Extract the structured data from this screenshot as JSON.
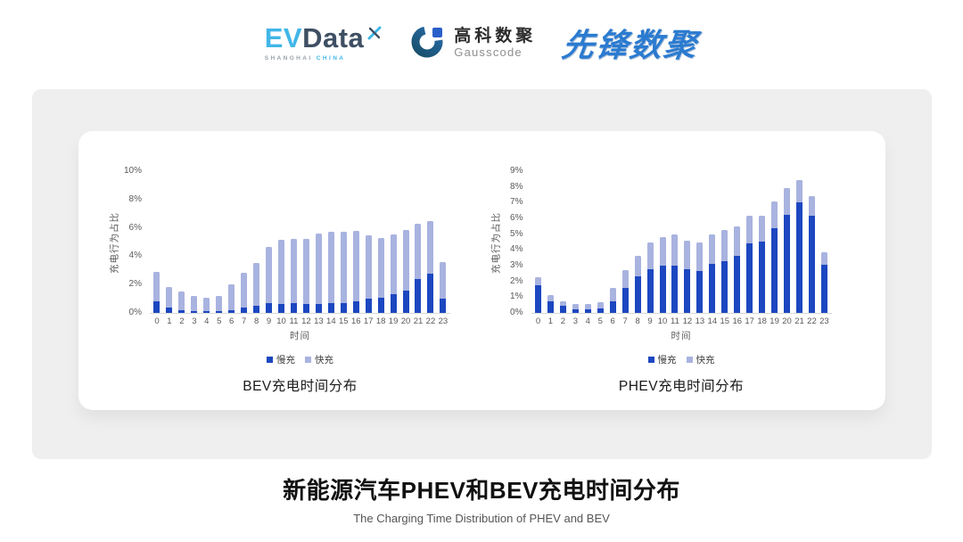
{
  "page": {
    "bg": "#ffffff",
    "panel_bg": "#efefef",
    "card_bg": "#ffffff"
  },
  "header": {
    "evdata": {
      "part1": "EV",
      "part2": "Data",
      "tagline_left": "SHANGHAI",
      "tagline_right": "CHINA",
      "accent_color": "#41b6e8",
      "dark_color": "#3e4f63"
    },
    "gausscode": {
      "name_cn": "高科数聚",
      "name_en": "Gausscode"
    },
    "xianfeng": {
      "text": "先锋数聚",
      "color": "#2b7bd0"
    }
  },
  "colors": {
    "slow": "#1c47c0",
    "fast": "#a9b3e0",
    "axis_text": "#595959",
    "baseline": "#d9d9d9"
  },
  "footer": {
    "title": "新能源汽车PHEV和BEV充电时间分布",
    "subtitle": "The Charging Time Distribution of PHEV and BEV"
  },
  "chart_data": [
    {
      "type": "bar",
      "stacked": true,
      "title": "BEV充电时间分布",
      "xlabel": "时间",
      "ylabel": "充电行为占比",
      "ylim": [
        0,
        10
      ],
      "ytick_step": 2,
      "ytick_suffix": "%",
      "grid": false,
      "legend_position": "bottom",
      "categories": [
        "0",
        "1",
        "2",
        "3",
        "4",
        "5",
        "6",
        "7",
        "8",
        "9",
        "10",
        "11",
        "12",
        "13",
        "14",
        "15",
        "16",
        "17",
        "18",
        "19",
        "20",
        "21",
        "22",
        "23"
      ],
      "series": [
        {
          "name": "慢充",
          "color": "#1c47c0",
          "values": [
            0.8,
            0.4,
            0.2,
            0.1,
            0.1,
            0.1,
            0.2,
            0.4,
            0.5,
            0.7,
            0.65,
            0.7,
            0.6,
            0.6,
            0.7,
            0.7,
            0.8,
            1.0,
            1.1,
            1.3,
            1.6,
            2.4,
            2.75,
            1.0
          ]
        },
        {
          "name": "快充",
          "color": "#a9b3e0",
          "values": [
            2.1,
            1.45,
            1.3,
            1.1,
            1.0,
            1.1,
            1.8,
            2.4,
            3.05,
            3.95,
            4.5,
            4.5,
            4.6,
            5.0,
            5.05,
            5.05,
            5.0,
            4.45,
            4.2,
            4.25,
            4.25,
            3.9,
            3.75,
            2.6
          ]
        }
      ]
    },
    {
      "type": "bar",
      "stacked": true,
      "title": "PHEV充电时间分布",
      "xlabel": "时间",
      "ylabel": "充电行为占比",
      "ylim": [
        0,
        9
      ],
      "ytick_step": 1,
      "ytick_suffix": "%",
      "grid": false,
      "legend_position": "bottom",
      "categories": [
        "0",
        "1",
        "2",
        "3",
        "4",
        "5",
        "6",
        "7",
        "8",
        "9",
        "10",
        "11",
        "12",
        "13",
        "14",
        "15",
        "16",
        "17",
        "18",
        "19",
        "20",
        "21",
        "22",
        "23"
      ],
      "series": [
        {
          "name": "慢充",
          "color": "#1c47c0",
          "values": [
            1.75,
            0.75,
            0.45,
            0.25,
            0.25,
            0.3,
            0.75,
            1.6,
            2.3,
            2.8,
            3.0,
            3.0,
            2.8,
            2.65,
            3.1,
            3.3,
            3.6,
            4.4,
            4.55,
            5.35,
            6.2,
            7.0,
            6.15,
            3.05
          ]
        },
        {
          "name": "快充",
          "color": "#a9b3e0",
          "values": [
            0.5,
            0.4,
            0.3,
            0.3,
            0.3,
            0.4,
            0.85,
            1.1,
            1.35,
            1.7,
            1.8,
            2.0,
            1.8,
            1.8,
            1.9,
            1.95,
            1.9,
            1.75,
            1.6,
            1.75,
            1.75,
            1.45,
            1.25,
            0.8
          ]
        }
      ]
    }
  ]
}
